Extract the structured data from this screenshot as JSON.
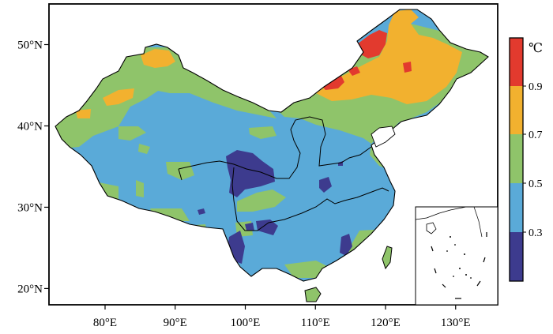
{
  "map": {
    "lat_ticks": [
      {
        "label": "50°N",
        "lat": 50
      },
      {
        "label": "40°N",
        "lat": 40
      },
      {
        "label": "30°N",
        "lat": 30
      },
      {
        "label": "20°N",
        "lat": 20
      }
    ],
    "lon_ticks": [
      {
        "label": "80°E",
        "lon": 80
      },
      {
        "label": "90°E",
        "lon": 90
      },
      {
        "label": "100°E",
        "lon": 100
      },
      {
        "label": "110°E",
        "lon": 110
      },
      {
        "label": "120°E",
        "lon": 120
      },
      {
        "label": "130°E",
        "lon": 130
      }
    ],
    "extent": {
      "lon_min": 72,
      "lon_max": 136,
      "lat_min": 18,
      "lat_max": 55
    }
  },
  "legend": {
    "unit": "℃",
    "labels": [
      "0.9",
      "0.7",
      "0.5",
      "0.3"
    ],
    "classes": [
      {
        "range": "> 0.9",
        "color": "#e23a2e"
      },
      {
        "range": "0.7–0.9",
        "color": "#f2b12f"
      },
      {
        "range": "0.5–0.7",
        "color": "#8fc46a"
      },
      {
        "range": "0.3–0.5",
        "color": "#5aaad8"
      },
      {
        "range": "< 0.3",
        "color": "#3d3b8e"
      }
    ]
  }
}
